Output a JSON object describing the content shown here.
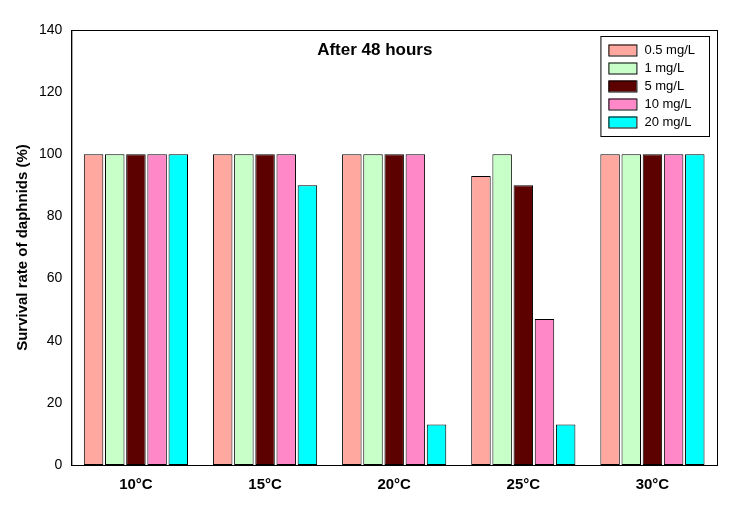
{
  "chart_data": {
    "type": "bar",
    "title": "After 48 hours",
    "y_label": "Survival rate of daphnids (%)",
    "categories": [
      "10°C",
      "15°C",
      "20°C",
      "25°C",
      "30°C"
    ],
    "series": [
      {
        "name": "0.5 mg/L",
        "color": "#ffa8a0",
        "values": [
          100,
          100,
          100,
          93,
          100
        ]
      },
      {
        "name": "1 mg/L",
        "color": "#c8ffc8",
        "values": [
          100,
          100,
          100,
          100,
          100
        ]
      },
      {
        "name": "5 mg/L",
        "color": "#5c0000",
        "values": [
          100,
          100,
          100,
          90,
          100
        ]
      },
      {
        "name": "10 mg/L",
        "color": "#ff88c8",
        "values": [
          100,
          100,
          100,
          47,
          100
        ]
      },
      {
        "name": "20 mg/L",
        "color": "#00ffff",
        "values": [
          100,
          90,
          13,
          13,
          100
        ]
      }
    ],
    "ylim": [
      0,
      140
    ],
    "yticks": [
      0,
      20,
      40,
      60,
      80,
      100,
      120,
      140
    ],
    "grid": false,
    "legend": "top-right"
  }
}
